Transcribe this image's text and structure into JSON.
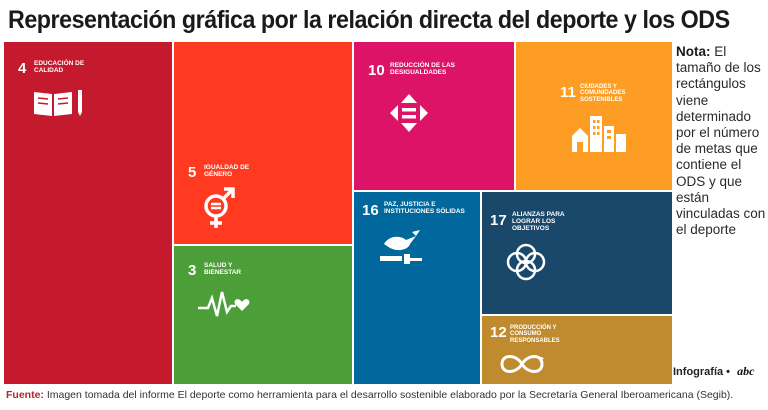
{
  "title": "Representación gráfica por la relación directa del deporte y los ODS",
  "note": {
    "label": "Nota:",
    "text": "El tamaño de los rectángulos viene determinado por el número de metas que contiene el ODS y que están vinculadas con el deporte"
  },
  "credit": {
    "text": "Infografía •",
    "brand": "abc"
  },
  "source": {
    "label": "Fuente:",
    "text": "Imagen tomada del informe El deporte como herramienta para el desarrollo sostenible elaborado por la Secretaría General Iberoamericana (Segib)."
  },
  "colors": {
    "ods4": "#c5192d",
    "ods5": "#ff3a21",
    "ods3": "#4c9f38",
    "ods10": "#dd1367",
    "ods11": "#fd9d24",
    "ods16": "#00689d",
    "ods17": "#19486a",
    "ods12": "#bf8b2e"
  },
  "chart_data": {
    "type": "treemap",
    "title": "Representación gráfica por la relación directa del deporte y los ODS",
    "items": [
      {
        "number": "4",
        "name": "EDUCACIÓN DE CALIDAD",
        "icon": "book-pencil-icon",
        "color": "#c5192d"
      },
      {
        "number": "5",
        "name": "IGUALDAD DE GÉNERO",
        "icon": "gender-equality-icon",
        "color": "#ff3a21"
      },
      {
        "number": "3",
        "name": "SALUD Y BIENESTAR",
        "icon": "heartbeat-icon",
        "color": "#4c9f38"
      },
      {
        "number": "10",
        "name": "REDUCCIÓN DE LAS DESIGUALDADES",
        "icon": "equality-arrows-icon",
        "color": "#dd1367"
      },
      {
        "number": "11",
        "name": "CIUDADES Y COMUNIDADES SOSTENIBLES",
        "icon": "city-buildings-icon",
        "color": "#fd9d24"
      },
      {
        "number": "16",
        "name": "PAZ, JUSTICIA E INSTITUCIONES SÓLIDAS",
        "icon": "dove-gavel-icon",
        "color": "#00689d"
      },
      {
        "number": "17",
        "name": "ALIANZAS PARA LOGRAR LOS OBJETIVOS",
        "icon": "interlocking-rings-icon",
        "color": "#19486a"
      },
      {
        "number": "12",
        "name": "PRODUCCIÓN Y CONSUMO RESPONSABLES",
        "icon": "infinity-icon",
        "color": "#bf8b2e"
      }
    ]
  }
}
